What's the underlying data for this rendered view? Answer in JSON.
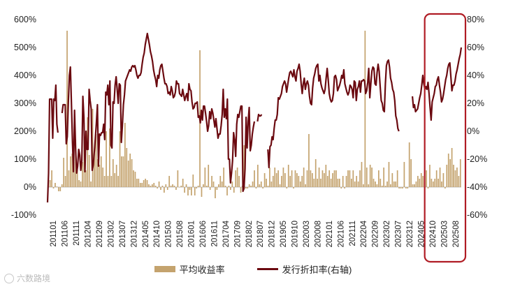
{
  "chart_data": {
    "type": "bar+line",
    "colors": {
      "bar": "#C4A36E",
      "line": "#6B0A10",
      "highlight": "#B01C24"
    },
    "left_axis": {
      "ylim": [
        -100,
        600
      ],
      "ticks": [
        "-100%",
        "0%",
        "100%",
        "200%",
        "300%",
        "400%",
        "500%",
        "600%"
      ]
    },
    "right_axis": {
      "ylim": [
        -60,
        80
      ],
      "ticks": [
        "-60%",
        "-40%",
        "-20%",
        "0%",
        "20%",
        "40%",
        "60%",
        "80%"
      ]
    },
    "x_tick_labels": [
      "201101",
      "201106",
      "201111",
      "201204",
      "201209",
      "201302",
      "201307",
      "201312",
      "201405",
      "201410",
      "201503",
      "201508",
      "201601",
      "201606",
      "201611",
      "201704",
      "201709",
      "201802",
      "201807",
      "201812",
      "201905",
      "201910",
      "202003",
      "202008",
      "202101",
      "202106",
      "202111",
      "202204",
      "202209",
      "202302",
      "202307",
      "202312",
      "202405",
      "202410",
      "202503",
      "202508"
    ],
    "highlight_range": [
      "202410",
      "202508"
    ],
    "series": [
      {
        "name": "平均收益率",
        "kind": "bar",
        "axis": "left",
        "values": [
          5,
          25,
          60,
          -5,
          15,
          2,
          -15,
          -15,
          10,
          105,
          40,
          560,
          60,
          110,
          120,
          90,
          170,
          70,
          25,
          20,
          90,
          230,
          60,
          250,
          115,
          20,
          280,
          120,
          190,
          100,
          80,
          110,
          70,
          40,
          200,
          40,
          210,
          40,
          100,
          50,
          80,
          40,
          200,
          110,
          110,
          230,
          140,
          95,
          120,
          100,
          60,
          55,
          30,
          30,
          15,
          15,
          25,
          30,
          25,
          10,
          5,
          10,
          15,
          5,
          -5,
          20,
          -10,
          5,
          -20,
          10,
          -10,
          40,
          5,
          10,
          5,
          -10,
          60,
          0,
          5,
          30,
          -20,
          10,
          -30,
          -10,
          -30,
          45,
          -30,
          -5,
          5,
          490,
          -35,
          10,
          70,
          5,
          80,
          -10,
          40,
          20,
          -40,
          -10,
          10,
          40,
          20,
          70,
          5,
          -30,
          5,
          -10,
          20,
          -20,
          60,
          70,
          40,
          -20,
          5,
          150,
          -5,
          -5,
          10,
          5,
          20,
          60,
          -5,
          80,
          10,
          20,
          -5,
          50,
          30,
          5,
          70,
          20,
          40,
          70,
          50,
          60,
          10,
          40,
          70,
          50,
          -5,
          80,
          40,
          60,
          -5,
          60,
          50,
          40,
          20,
          40,
          70,
          10,
          60,
          190,
          60,
          50,
          30,
          100,
          30,
          70,
          30,
          60,
          50,
          80,
          40,
          60,
          30,
          50,
          60,
          60,
          30,
          30,
          -5,
          40,
          -5,
          40,
          60,
          60,
          30,
          60,
          20,
          40,
          20,
          60,
          90,
          10,
          560,
          70,
          10,
          80,
          70,
          30,
          20,
          10,
          60,
          30,
          5,
          70,
          5,
          20,
          90,
          10,
          50,
          20,
          20,
          60,
          -5,
          -5,
          -5,
          90,
          -5,
          -5,
          160,
          100,
          10,
          10,
          20,
          40,
          30,
          50,
          40,
          20,
          60,
          -5,
          80,
          30,
          20,
          30,
          60,
          30,
          70,
          20,
          50,
          -5,
          80,
          120,
          100,
          140,
          80,
          60,
          70,
          40,
          100
        ]
      },
      {
        "name": "发行折扣率(右轴)",
        "kind": "line",
        "axis": "right",
        "values": [
          -51,
          -30,
          23,
          23,
          23,
          -5,
          23,
          22,
          33,
          5,
          -1,
          null,
          null,
          null,
          13,
          19,
          19,
          19,
          -9,
          -4,
          20,
          40,
          46,
          20,
          -8,
          -29,
          15,
          -12,
          -30,
          -25,
          -13,
          -17,
          -28,
          -21,
          25,
          10,
          -29,
          0,
          -13,
          -13,
          30,
          22,
          16,
          -28,
          -24,
          -15,
          -5,
          6,
          19,
          -25,
          -2,
          -3,
          -1,
          -1,
          5,
          -6,
          28,
          26,
          33,
          19,
          36,
          -10,
          -12,
          21,
          20,
          33,
          39,
          30,
          20,
          34,
          33,
          -8,
          4,
          19,
          26,
          36,
          38,
          40,
          42,
          44,
          43,
          46,
          47,
          46,
          47,
          44,
          40,
          38,
          40,
          40,
          42,
          48,
          53,
          56,
          62,
          66,
          70,
          66,
          62,
          57,
          54,
          50,
          44,
          40,
          37,
          32,
          40,
          38,
          44,
          47,
          48,
          43,
          38,
          34,
          34,
          32,
          27,
          28,
          26,
          32,
          29,
          24,
          25,
          28,
          36,
          34,
          34,
          27,
          26,
          25,
          30,
          26,
          22,
          25,
          27,
          22,
          34,
          30,
          29,
          21,
          16,
          17,
          20,
          20,
          21,
          10,
          11,
          6,
          15,
          8,
          18,
          18,
          13,
          7,
          0,
          4,
          14,
          9,
          16,
          13,
          8,
          3,
          9,
          2,
          -5,
          -2,
          -2,
          4,
          12,
          30,
          10,
          16,
          9,
          23,
          -20,
          -20,
          -37,
          -30,
          -21,
          -1,
          -6,
          -18,
          5,
          12,
          10,
          14,
          18,
          18,
          -43,
          -41,
          -27,
          10,
          -12,
          7,
          17,
          -14,
          -10,
          -2,
          3,
          7,
          null,
          null,
          7,
          12,
          11,
          11,
          12,
          null,
          null,
          null,
          null,
          null,
          -13,
          -26,
          -11,
          -10,
          -4,
          -6,
          2,
          8,
          8,
          12,
          24,
          23,
          25,
          27,
          32,
          34,
          36,
          34,
          28,
          33,
          38,
          42,
          43,
          41,
          39,
          44,
          39,
          36,
          43,
          45,
          48,
          43,
          34,
          27,
          34,
          38,
          30,
          34,
          36,
          33,
          25,
          20,
          19,
          31,
          38,
          41,
          45,
          47,
          48,
          36,
          40,
          34,
          31,
          29,
          27,
          30,
          38,
          45,
          37,
          27,
          23,
          21,
          22,
          27,
          39,
          40,
          37,
          29,
          31,
          33,
          36,
          40,
          38,
          44,
          34,
          31,
          28,
          26,
          28,
          33,
          32,
          30,
          24,
          36,
          35,
          22,
          30,
          32,
          36,
          28,
          36,
          36,
          37,
          36,
          27,
          29,
          35,
          45,
          24,
          34,
          43,
          46,
          45,
          34,
          33,
          42,
          48,
          43,
          32,
          22,
          20,
          15,
          14,
          34,
          47,
          50,
          51,
          46,
          38,
          35,
          30,
          28,
          22,
          11,
          8,
          2,
          0,
          null,
          null,
          null,
          null,
          null,
          null,
          null,
          null,
          null,
          null,
          null,
          null,
          25,
          17,
          19,
          14,
          15,
          16,
          20,
          24,
          27,
          33,
          40,
          34,
          30,
          32,
          30,
          35,
          27,
          17,
          8,
          21,
          24,
          27,
          32,
          33,
          37,
          39,
          33,
          28,
          21,
          23,
          27,
          32,
          37,
          40,
          45,
          48,
          49,
          39,
          29,
          33,
          33,
          36,
          41,
          44,
          48,
          52,
          55,
          60
        ]
      }
    ]
  }
}
